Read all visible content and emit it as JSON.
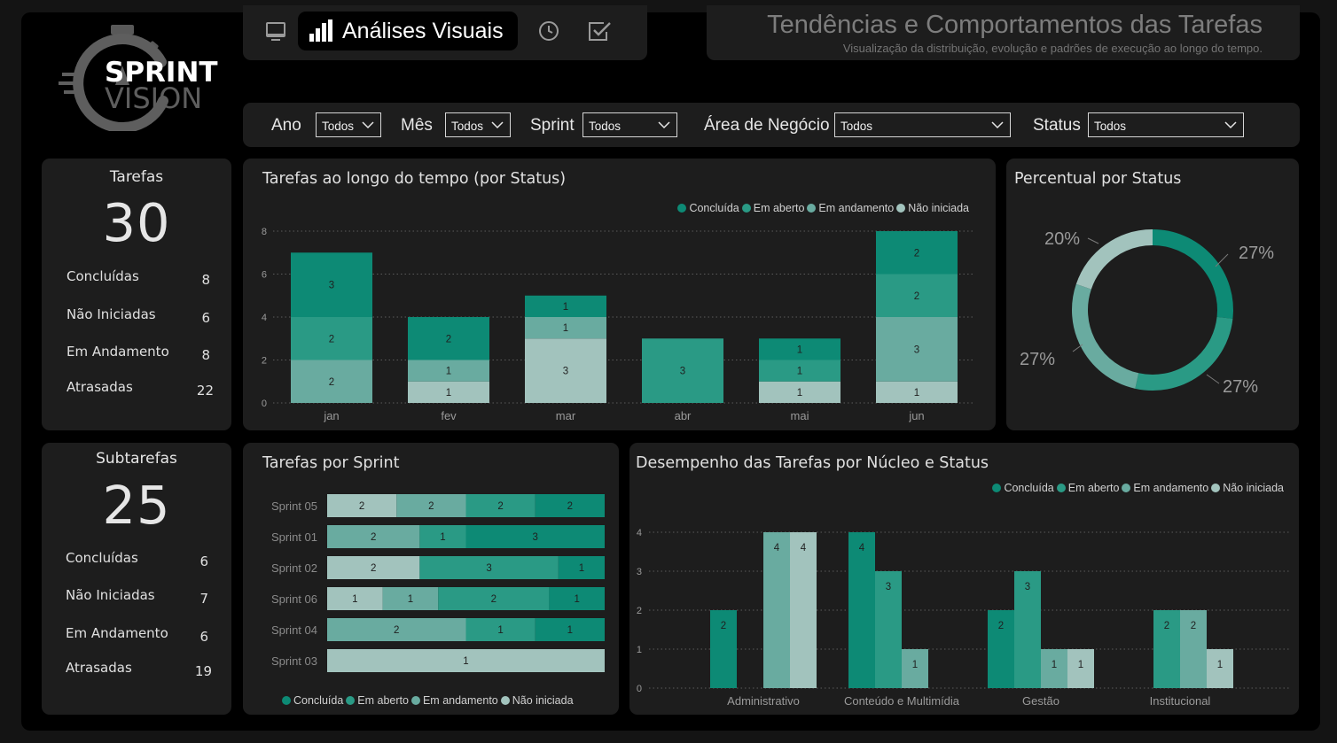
{
  "colors": {
    "concluida": "#0d8a75",
    "em_aberto": "#2a9a85",
    "em_andamento": "#69aba0",
    "nao_iniciada": "#a2c3bd",
    "bar_label": "#1f1f1f"
  },
  "logo": {
    "line1": "SPRINT",
    "line2": "VISION"
  },
  "nav": {
    "active_label": "Análises Visuais",
    "buttons": [
      {
        "icon": "monitor-icon"
      },
      {
        "icon": "bar-chart-icon"
      },
      {
        "icon": "clock-icon"
      },
      {
        "icon": "checklist-icon"
      }
    ]
  },
  "header": {
    "title": "Tendências e Comportamentos das Tarefas",
    "subtitle": "Visualização da distribuição, evolução e padrões de execução ao longo do tempo."
  },
  "filters": [
    {
      "label": "Ano",
      "value": "Todos"
    },
    {
      "label": "Mês",
      "value": "Todos"
    },
    {
      "label": "Sprint",
      "value": "Todos"
    },
    {
      "label": "Área de Negócio",
      "value": "Todos"
    },
    {
      "label": "Status",
      "value": "Todos"
    }
  ],
  "kpi_tarefas": {
    "title": "Tarefas",
    "total": "30",
    "rows": [
      {
        "label": "Concluídas",
        "value": "8"
      },
      {
        "label": "Não Iniciadas",
        "value": "6"
      },
      {
        "label": "Em Andamento",
        "value": "8"
      },
      {
        "label": "Atrasadas",
        "value": "22"
      }
    ]
  },
  "kpi_subtarefas": {
    "title": "Subtarefas",
    "total": "25",
    "rows": [
      {
        "label": "Concluídas",
        "value": "6"
      },
      {
        "label": "Não Iniciadas",
        "value": "7"
      },
      {
        "label": "Em Andamento",
        "value": "6"
      },
      {
        "label": "Atrasadas",
        "value": "19"
      }
    ]
  },
  "legend": [
    "Concluída",
    "Em aberto",
    "Em andamento",
    "Não iniciada"
  ],
  "chart_data": [
    {
      "id": "tempo",
      "type": "bar",
      "stacked": true,
      "title": "Tarefas ao longo do tempo (por Status)",
      "categories": [
        "jan",
        "fev",
        "mar",
        "abr",
        "mai",
        "jun"
      ],
      "series": [
        {
          "name": "Não iniciada",
          "values": [
            0,
            1,
            3,
            0,
            1,
            1
          ]
        },
        {
          "name": "Em andamento",
          "values": [
            2,
            1,
            1,
            0,
            0,
            3
          ]
        },
        {
          "name": "Em aberto",
          "values": [
            2,
            0,
            0,
            3,
            1,
            2
          ]
        },
        {
          "name": "Concluída",
          "values": [
            3,
            2,
            1,
            0,
            1,
            2
          ]
        }
      ],
      "yticks": [
        0,
        2,
        4,
        6,
        8
      ],
      "ylim": [
        0,
        8
      ],
      "grid": true,
      "legend_position": "top-right"
    },
    {
      "id": "percentual",
      "type": "pie",
      "donut": true,
      "title": "Percentual por Status",
      "labels": [
        "Concluída",
        "Em aberto",
        "Em andamento",
        "Não iniciada"
      ],
      "values": [
        27,
        27,
        27,
        20
      ],
      "value_labels": [
        "27%",
        "27%",
        "27%",
        "20%"
      ]
    },
    {
      "id": "sprint",
      "type": "bar",
      "orientation": "horizontal",
      "stacked": true,
      "title": "Tarefas por Sprint",
      "categories": [
        "Sprint 05",
        "Sprint 01",
        "Sprint 02",
        "Sprint 06",
        "Sprint 04",
        "Sprint 03"
      ],
      "series": [
        {
          "name": "Não iniciada",
          "values": [
            2,
            0,
            2,
            1,
            0,
            1
          ]
        },
        {
          "name": "Em andamento",
          "values": [
            2,
            2,
            0,
            1,
            2,
            0
          ]
        },
        {
          "name": "Em aberto",
          "values": [
            2,
            1,
            3,
            2,
            1,
            0
          ]
        },
        {
          "name": "Concluída",
          "values": [
            2,
            3,
            1,
            1,
            1,
            0
          ]
        }
      ],
      "legend_position": "bottom"
    },
    {
      "id": "nucleo",
      "type": "bar",
      "grouped": true,
      "title": "Desempenho das Tarefas por Núcleo e Status",
      "categories": [
        "Administrativo",
        "Conteúdo e Multimídia",
        "Gestão",
        "Institucional"
      ],
      "series": [
        {
          "name": "Concluída",
          "values": [
            2,
            4,
            2,
            0
          ]
        },
        {
          "name": "Em aberto",
          "values": [
            0,
            3,
            3,
            2
          ]
        },
        {
          "name": "Em andamento",
          "values": [
            4,
            1,
            1,
            2
          ]
        },
        {
          "name": "Não iniciada",
          "values": [
            4,
            0,
            1,
            1
          ]
        }
      ],
      "yticks": [
        0,
        1,
        2,
        3,
        4
      ],
      "ylim": [
        0,
        4
      ],
      "grid": true,
      "legend_position": "top-right"
    }
  ]
}
